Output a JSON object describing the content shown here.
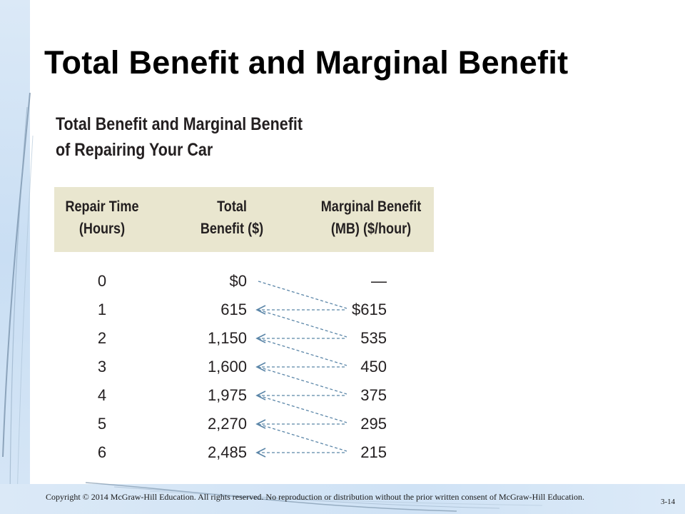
{
  "slide": {
    "title": "Total Benefit and Marginal Benefit",
    "footer": {
      "copyright": "Copyright © 2014 McGraw-Hill Education. All rights reserved. No reproduction or distribution without the prior written consent of McGraw-Hill Education.",
      "page_number": "3-14"
    },
    "colors": {
      "header_band": "#e9e6cf",
      "arrow": "#5b86a8",
      "background_accent": "#cfe2f5"
    }
  },
  "table": {
    "title_line1": "Total Benefit and Marginal Benefit",
    "title_line2": "of Repairing Your Car",
    "headers": {
      "hours_line1": "Repair Time",
      "hours_line2": "(Hours)",
      "total_line1": "Total",
      "total_line2": "Benefit ($)",
      "mb_line1": "Marginal Benefit",
      "mb_line2": "(MB) ($/hour)"
    },
    "rows": [
      {
        "hours": "0",
        "total": "$0",
        "mb": "—"
      },
      {
        "hours": "1",
        "total": "615",
        "mb": "$615"
      },
      {
        "hours": "2",
        "total": "1,150",
        "mb": "535"
      },
      {
        "hours": "3",
        "total": "1,600",
        "mb": "450"
      },
      {
        "hours": "4",
        "total": "1,975",
        "mb": "375"
      },
      {
        "hours": "5",
        "total": "2,270",
        "mb": "295"
      },
      {
        "hours": "6",
        "total": "2,485",
        "mb": "215"
      }
    ]
  }
}
